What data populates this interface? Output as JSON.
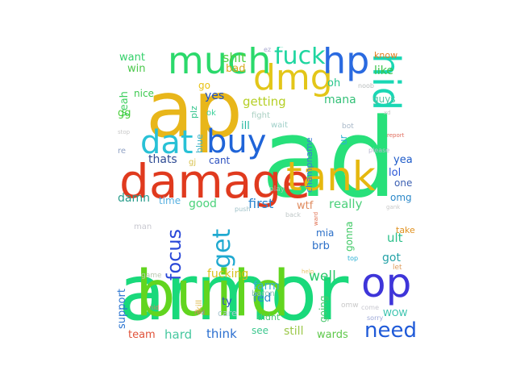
{
  "wordcloud": {
    "words": [
      {
        "text": "armor",
        "color": "#19d97b"
      },
      {
        "text": "ad",
        "color": "#27e07a"
      },
      {
        "text": "ap",
        "color": "#e8b61a"
      },
      {
        "text": "build",
        "color": "#62d51f"
      },
      {
        "text": "damage",
        "color": "#e03a1e"
      },
      {
        "text": "tank",
        "color": "#e5b80f"
      },
      {
        "text": "dmg",
        "color": "#e3c618"
      },
      {
        "text": "much",
        "color": "#2bd96b"
      },
      {
        "text": "buy",
        "color": "#1f64d8"
      },
      {
        "text": "dat",
        "color": "#28c1d6"
      },
      {
        "text": "hp",
        "color": "#2a6ae0"
      },
      {
        "text": "hid",
        "color": "#19d7b4"
      },
      {
        "text": "fuck",
        "color": "#1fd6a0"
      },
      {
        "text": "op",
        "color": "#3e35d9"
      },
      {
        "text": "focus",
        "color": "#2a48d8"
      },
      {
        "text": "get",
        "color": "#1fa9d0"
      },
      {
        "text": "need",
        "color": "#1f5ad8"
      },
      {
        "text": "shit",
        "color": "#4dd040"
      },
      {
        "text": "want",
        "color": "#33d06a"
      },
      {
        "text": "win",
        "color": "#4bc84b"
      },
      {
        "text": "yeah",
        "color": "#3ccf5e"
      },
      {
        "text": "nice",
        "color": "#3dc94f"
      },
      {
        "text": "gg",
        "color": "#4bcf3c"
      },
      {
        "text": "go",
        "color": "#e8c214"
      },
      {
        "text": "bad",
        "color": "#d8a91d"
      },
      {
        "text": "yes",
        "color": "#1a4fc8"
      },
      {
        "text": "plz",
        "color": "#33c48c"
      },
      {
        "text": "ok",
        "color": "#3bd09a"
      },
      {
        "text": "getting",
        "color": "#b5cf25"
      },
      {
        "text": "oh",
        "color": "#26c58a"
      },
      {
        "text": "mana",
        "color": "#33c077"
      },
      {
        "text": "like",
        "color": "#3ac44b"
      },
      {
        "text": "know",
        "color": "#e07c1e"
      },
      {
        "text": "guys",
        "color": "#4ac3a0"
      },
      {
        "text": "noob",
        "color": "#b9bdbd"
      },
      {
        "text": "fight",
        "color": "#a8cfc1"
      },
      {
        "text": "wait",
        "color": "#9fcfc8"
      },
      {
        "text": "ill",
        "color": "#22b7a0"
      },
      {
        "text": "champname",
        "color": "#3b7bd6"
      },
      {
        "text": "ur",
        "color": "#2bb0d4"
      },
      {
        "text": "bot",
        "color": "#a8b8c8"
      },
      {
        "text": "report",
        "color": "#e06d5e"
      },
      {
        "text": "please",
        "color": "#b8b8d0"
      },
      {
        "text": "yea",
        "color": "#1e5bc9"
      },
      {
        "text": "lol",
        "color": "#2a56d8"
      },
      {
        "text": "one",
        "color": "#3b5fb2"
      },
      {
        "text": "omg",
        "color": "#2b88c9"
      },
      {
        "text": "blue",
        "color": "#3fb3c8"
      },
      {
        "text": "gj",
        "color": "#d8c14c"
      },
      {
        "text": "cant",
        "color": "#2b4fbf"
      },
      {
        "text": "thats",
        "color": "#2e4b93"
      },
      {
        "text": "stop",
        "color": "#c8c8c8"
      },
      {
        "text": "re",
        "color": "#8fa1c4"
      },
      {
        "text": "damn",
        "color": "#2a9d8c"
      },
      {
        "text": "time",
        "color": "#57b0e0"
      },
      {
        "text": "good",
        "color": "#4bd27a"
      },
      {
        "text": "first",
        "color": "#2a86d0"
      },
      {
        "text": "wtf",
        "color": "#e08b5e"
      },
      {
        "text": "really",
        "color": "#4bd07a"
      },
      {
        "text": "play",
        "color": "#a8c8b0"
      },
      {
        "text": "push",
        "color": "#9fc1c8"
      },
      {
        "text": "back",
        "color": "#c0c8c8"
      },
      {
        "text": "man",
        "color": "#c8c8d0"
      },
      {
        "text": "mia",
        "color": "#2b6fc8"
      },
      {
        "text": "brb",
        "color": "#2b6fc8"
      },
      {
        "text": "gonna",
        "color": "#3ec864"
      },
      {
        "text": "top",
        "color": "#2bb0d4"
      },
      {
        "text": "ult",
        "color": "#2bbf8a"
      },
      {
        "text": "got",
        "color": "#26a3a8"
      },
      {
        "text": "take",
        "color": "#e0901e"
      },
      {
        "text": "let",
        "color": "#e09d5e"
      },
      {
        "text": "well",
        "color": "#2bc96b"
      },
      {
        "text": "farm",
        "color": "#36b0cf"
      },
      {
        "text": "fucking",
        "color": "#d8c21e"
      },
      {
        "text": "game",
        "color": "#b9c8b0"
      },
      {
        "text": "support",
        "color": "#2b74d0"
      },
      {
        "text": "kill",
        "color": "#dcb43c"
      },
      {
        "text": "fed",
        "color": "#2a8ad0"
      },
      {
        "text": "baron",
        "color": "#8ec1b4"
      },
      {
        "text": "didnt",
        "color": "#4dc77b"
      },
      {
        "text": "going",
        "color": "#4dc870"
      },
      {
        "text": "ty",
        "color": "#2b4fbf"
      },
      {
        "text": "care",
        "color": "#aac8d0"
      },
      {
        "text": "red",
        "color": "#e07070"
      },
      {
        "text": "help",
        "color": "#e6c46a"
      },
      {
        "text": "ward",
        "color": "#e07050"
      },
      {
        "text": "nid",
        "color": "#e07c5e"
      },
      {
        "text": "omw",
        "color": "#c8c8c8"
      },
      {
        "text": "come",
        "color": "#c8c8d0"
      },
      {
        "text": "sorry",
        "color": "#9ca7d8"
      },
      {
        "text": "WOW",
        "color": "#2bbfa8"
      },
      {
        "text": "team",
        "color": "#e0533a"
      },
      {
        "text": "hard",
        "color": "#47c8a0"
      },
      {
        "text": "think",
        "color": "#2b6fd0"
      },
      {
        "text": "see",
        "color": "#3fc890"
      },
      {
        "text": "still",
        "color": "#9cc84a"
      },
      {
        "text": "wards",
        "color": "#5ec84a"
      },
      {
        "text": "ez",
        "color": "#a8a8d0"
      },
      {
        "text": "xd",
        "color": "#c8c8c8"
      },
      {
        "text": "gank",
        "color": "#c8c8c8"
      }
    ]
  }
}
